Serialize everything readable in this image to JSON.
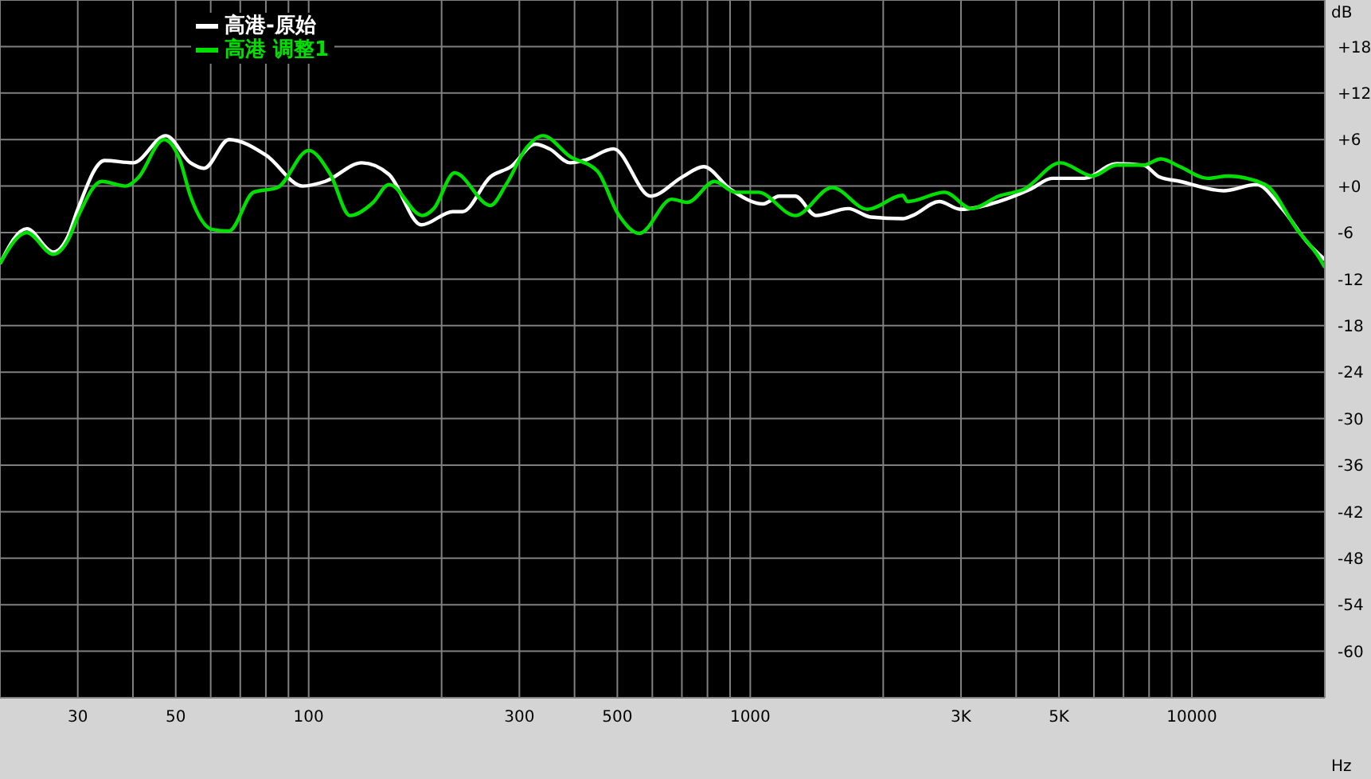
{
  "chart_data": {
    "type": "line",
    "xlabel": "Hz",
    "ylabel": "dB",
    "log": "x",
    "grid": true,
    "legend": "top left",
    "marker": "none",
    "line_style": "solid",
    "xlim": [
      20,
      20000
    ],
    "ylim": [
      -66,
      24
    ],
    "xticks": [
      {
        "value": 20,
        "label": null
      },
      {
        "value": 30,
        "label": "30"
      },
      {
        "value": 40,
        "label": null
      },
      {
        "value": 50,
        "label": "50"
      },
      {
        "value": 60,
        "label": null
      },
      {
        "value": 70,
        "label": null
      },
      {
        "value": 80,
        "label": null
      },
      {
        "value": 90,
        "label": null
      },
      {
        "value": 100,
        "label": "100"
      },
      {
        "value": 200,
        "label": null
      },
      {
        "value": 300,
        "label": "300"
      },
      {
        "value": 400,
        "label": null
      },
      {
        "value": 500,
        "label": "500"
      },
      {
        "value": 600,
        "label": null
      },
      {
        "value": 700,
        "label": null
      },
      {
        "value": 800,
        "label": null
      },
      {
        "value": 900,
        "label": null
      },
      {
        "value": 1000,
        "label": "1000"
      },
      {
        "value": 2000,
        "label": null
      },
      {
        "value": 3000,
        "label": "3K"
      },
      {
        "value": 4000,
        "label": null
      },
      {
        "value": 5000,
        "label": "5K"
      },
      {
        "value": 6000,
        "label": null
      },
      {
        "value": 7000,
        "label": null
      },
      {
        "value": 8000,
        "label": null
      },
      {
        "value": 9000,
        "label": null
      },
      {
        "value": 10000,
        "label": "10000"
      },
      {
        "value": 20000,
        "label": null
      }
    ],
    "yticks": [
      {
        "value": 18,
        "label": "+18"
      },
      {
        "value": 12,
        "label": "+12"
      },
      {
        "value": 6,
        "label": "+6"
      },
      {
        "value": 0,
        "label": "+0"
      },
      -6,
      -12,
      -18,
      -24,
      -30,
      -36,
      -42,
      -48,
      -54,
      -60
    ],
    "series": [
      {
        "name": "高港-原始",
        "color": "#ffffff",
        "x": [
          20,
          23,
          26.4,
          28.5,
          30,
          34.5,
          40,
          47.5,
          54,
          58,
          66,
          80,
          97,
          109,
          132,
          152,
          180,
          212,
          223,
          258,
          287,
          326,
          351,
          391,
          425,
          490,
          595,
          703,
          784,
          901,
          1069,
          1164,
          1264,
          1409,
          1667,
          1875,
          2215,
          2330,
          2680,
          2990,
          3650,
          4310,
          4830,
          5710,
          6750,
          7770,
          8430,
          9400,
          11800,
          14000,
          16000,
          18400,
          20000
        ],
        "values": [
          -10,
          -5.5,
          -8.5,
          -6.5,
          -3,
          3.3,
          3,
          6.5,
          3,
          2.3,
          6,
          4,
          0,
          0.6,
          3,
          1.5,
          -5,
          -3.3,
          -3.3,
          1.2,
          2.5,
          5.4,
          4.8,
          3,
          3.4,
          4.8,
          -1.3,
          1.2,
          2.5,
          -0.4,
          -2.3,
          -1.3,
          -1.3,
          -3.8,
          -2.9,
          -4,
          -4.2,
          -3.8,
          -2,
          -3,
          -2,
          -0.4,
          1,
          1,
          2.9,
          2.7,
          1.2,
          0.6,
          -0.6,
          0.2,
          -2.9,
          -7.5,
          -9.5
        ]
      },
      {
        "name": "高港 调整1",
        "color": "#00e000",
        "x": [
          20,
          23,
          26.4,
          28.5,
          30,
          34,
          38.5,
          41,
          47,
          51,
          54,
          60.5,
          66,
          75,
          85,
          100,
          112,
          124,
          140,
          152,
          181,
          192,
          214,
          258,
          280,
          312,
          339,
          391,
          451,
          502,
          561,
          664,
          721,
          830,
          925,
          1042,
          1264,
          1533,
          1843,
          2215,
          2270,
          2755,
          3170,
          3650,
          4170,
          5040,
          5960,
          6750,
          7770,
          8510,
          9400,
          10850,
          12100,
          14660,
          17300,
          19500,
          20000
        ],
        "values": [
          -10,
          -6,
          -8.8,
          -7,
          -4,
          0.6,
          0,
          1,
          6,
          3.5,
          -1.3,
          -5.6,
          -5.8,
          -0.8,
          -0.2,
          4.6,
          1.5,
          -3.8,
          -2.1,
          0.2,
          -3.8,
          -2.9,
          1.7,
          -2.5,
          0.2,
          5,
          6.5,
          3.8,
          1.9,
          -3.6,
          -6.1,
          -1.7,
          -2.1,
          0.6,
          -0.8,
          -0.8,
          -3.8,
          -0.2,
          -3,
          -1.2,
          -2,
          -0.8,
          -2.9,
          -1.3,
          -0.4,
          3,
          1.3,
          2.7,
          2.7,
          3.5,
          2.5,
          1,
          1.3,
          0.2,
          -5.6,
          -9.4,
          -10.5
        ]
      }
    ]
  }
}
